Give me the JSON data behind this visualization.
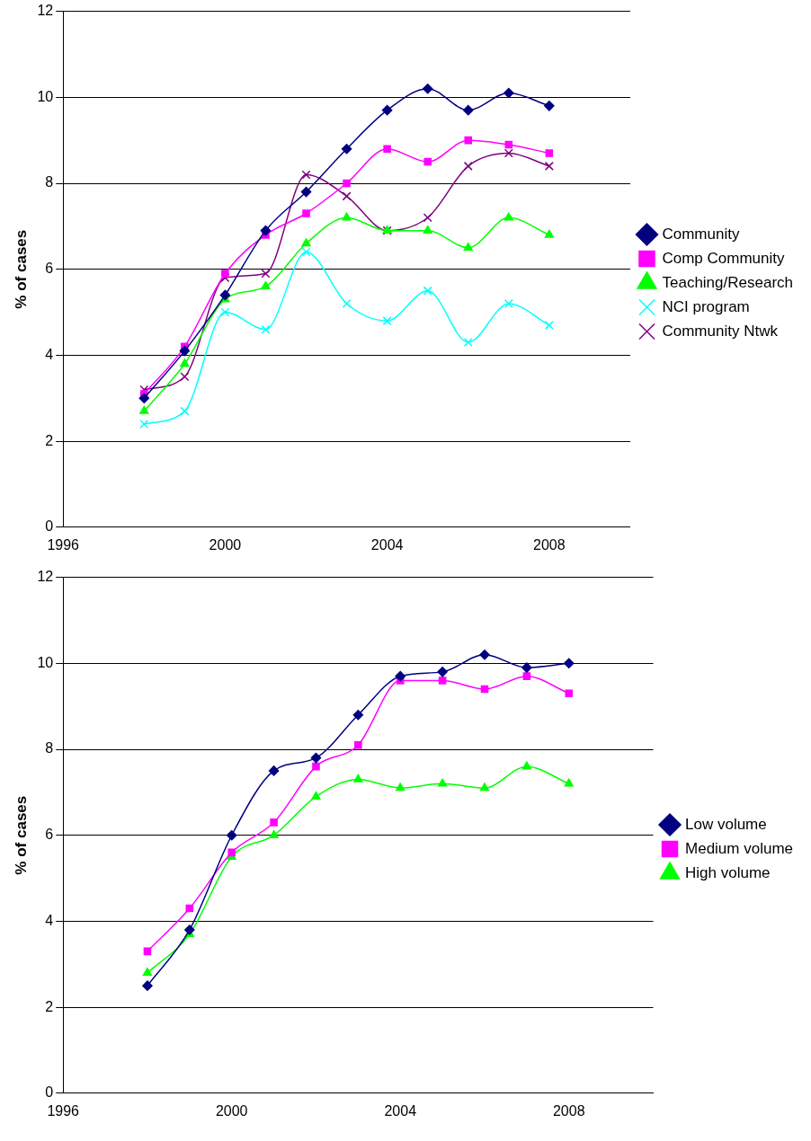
{
  "chart_data": [
    {
      "type": "line",
      "ylabel": "% of cases",
      "x": [
        1998,
        1999,
        2000,
        2001,
        2002,
        2003,
        2004,
        2005,
        2006,
        2007,
        2008
      ],
      "xlim": [
        1996,
        2010
      ],
      "xticks": [
        1996,
        2000,
        2004,
        2008
      ],
      "ylim": [
        0,
        12
      ],
      "yticks": [
        0,
        2,
        4,
        6,
        8,
        10,
        12
      ],
      "grid": "y",
      "legend": "right",
      "series": [
        {
          "name": "Community",
          "color": "#000080",
          "marker": "diamond",
          "values": [
            3.0,
            4.1,
            5.4,
            6.9,
            7.8,
            8.8,
            9.7,
            10.2,
            9.7,
            10.1,
            9.8
          ]
        },
        {
          "name": "Comp Community",
          "color": "#ff00ff",
          "marker": "square",
          "values": [
            3.1,
            4.2,
            5.9,
            6.8,
            7.3,
            8.0,
            8.8,
            8.5,
            9.0,
            8.9,
            8.7
          ]
        },
        {
          "name": "Teaching/Research",
          "color": "#00ff00",
          "marker": "triangle",
          "values": [
            2.7,
            3.8,
            5.3,
            5.6,
            6.6,
            7.2,
            6.9,
            6.9,
            6.5,
            7.2,
            6.8
          ]
        },
        {
          "name": "NCI program",
          "color": "#00ffff",
          "marker": "cross",
          "values": [
            2.4,
            2.7,
            5.0,
            4.6,
            6.4,
            5.2,
            4.8,
            5.5,
            4.3,
            5.2,
            4.7
          ]
        },
        {
          "name": "Community Ntwk",
          "color": "#800080",
          "marker": "cross",
          "values": [
            3.2,
            3.5,
            5.8,
            5.9,
            8.2,
            7.7,
            6.9,
            7.2,
            8.4,
            8.7,
            8.4
          ]
        }
      ]
    },
    {
      "type": "line",
      "ylabel": "% of cases",
      "x": [
        1998,
        1999,
        2000,
        2001,
        2002,
        2003,
        2004,
        2005,
        2006,
        2007,
        2008
      ],
      "xlim": [
        1996,
        2010
      ],
      "xticks": [
        1996,
        2000,
        2004,
        2008
      ],
      "ylim": [
        0,
        12
      ],
      "yticks": [
        0,
        2,
        4,
        6,
        8,
        10,
        12
      ],
      "grid": "y",
      "legend": "right",
      "series": [
        {
          "name": "Low volume",
          "color": "#000080",
          "marker": "diamond",
          "values": [
            2.5,
            3.8,
            6.0,
            7.5,
            7.8,
            8.8,
            9.7,
            9.8,
            10.2,
            9.9,
            10.0
          ]
        },
        {
          "name": "Medium volume",
          "color": "#ff00ff",
          "marker": "square",
          "values": [
            3.3,
            4.3,
            5.6,
            6.3,
            7.6,
            8.1,
            9.6,
            9.6,
            9.4,
            9.7,
            9.3
          ]
        },
        {
          "name": "High volume",
          "color": "#00ff00",
          "marker": "triangle",
          "values": [
            2.8,
            3.7,
            5.5,
            6.0,
            6.9,
            7.3,
            7.1,
            7.2,
            7.1,
            7.6,
            7.2
          ]
        }
      ]
    }
  ]
}
